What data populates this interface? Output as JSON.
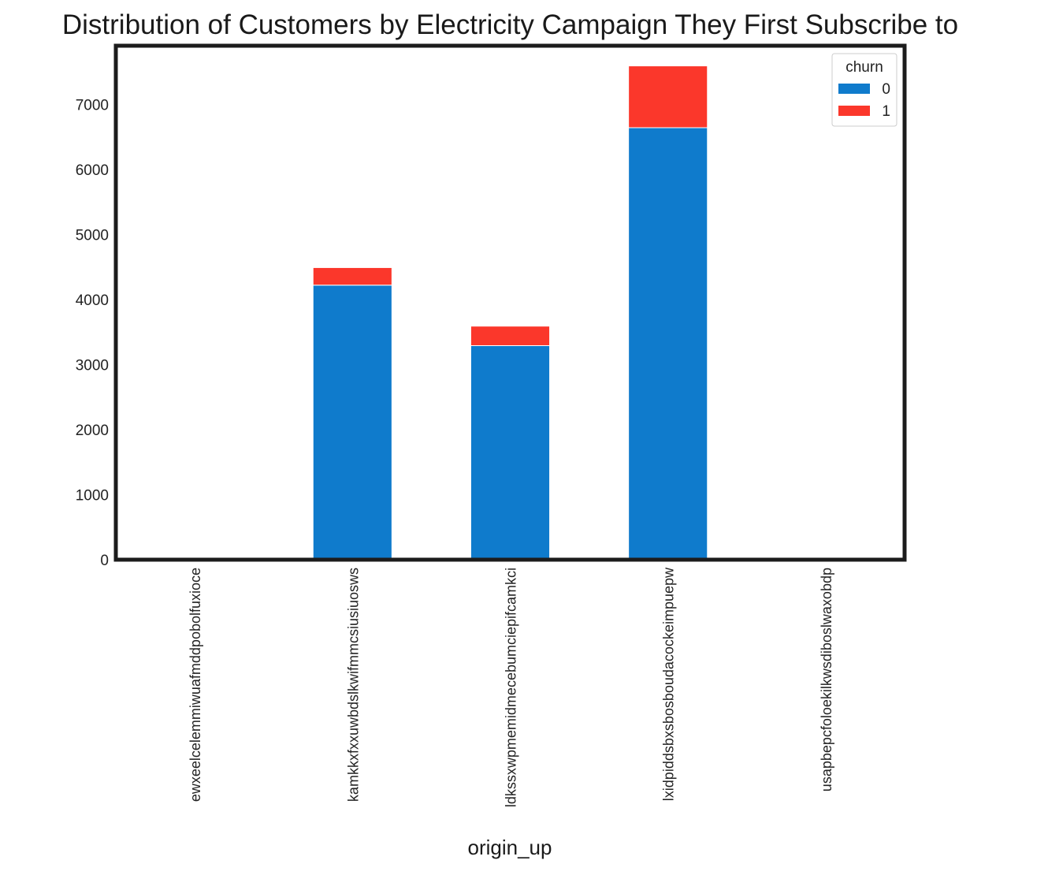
{
  "chart_data": {
    "type": "bar",
    "stacked": true,
    "title": "Distribution of Customers by Electricity Campaign They First Subscribe to",
    "xlabel": "origin_up",
    "ylabel": "",
    "ylim": [
      0,
      7900
    ],
    "yticks": [
      0,
      1000,
      2000,
      3000,
      4000,
      5000,
      6000,
      7000
    ],
    "grid": false,
    "legend_position": "top-right",
    "legend_title": "churn",
    "categories": [
      "ewxeelcelemmiwuafmddpobolfuxioce",
      "kamkkxfxxuwbdslkwifmmcsiusiuosws",
      "ldkssxwpmemidmecebumciepifcamkci",
      "lxidpiddsbxsbosboudacockeimpuepw",
      "usapbepcfoloekilkwsdiboslwaxobdp"
    ],
    "series": [
      {
        "name": "0",
        "color": "#0f7bcc",
        "values": [
          6,
          4220,
          3290,
          6640,
          2
        ]
      },
      {
        "name": "1",
        "color": "#fb372b",
        "values": [
          1,
          270,
          300,
          950,
          0
        ]
      }
    ]
  }
}
